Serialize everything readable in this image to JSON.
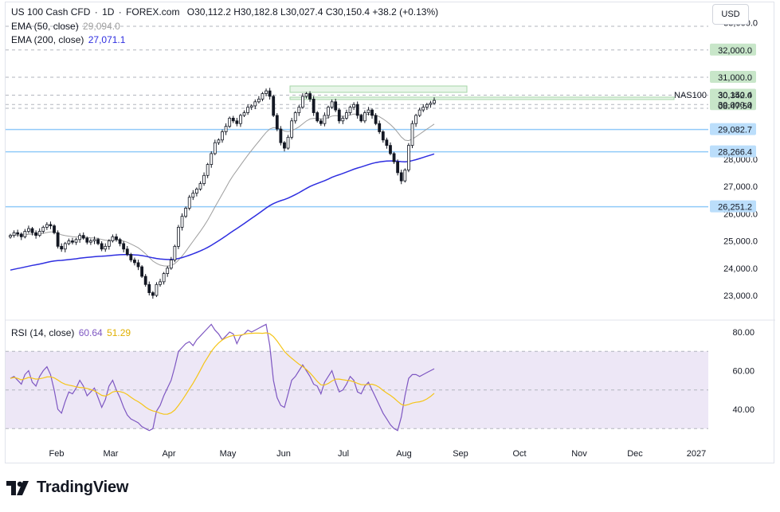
{
  "header": {
    "symbol": "US 100 Cash CFD",
    "interval": "1D",
    "source": "FOREX.com",
    "ohlc": "O30,112.2 H30,182.8 L30,027.4 C30,150.4 +38.2 (+0.13%)",
    "ema50_label": "EMA (50, close)",
    "ema50_value": "29,094.0",
    "ema200_label": "EMA (200, close)",
    "ema200_value": "27,071.1",
    "currency_button": "USD"
  },
  "rsi_legend": {
    "label": "RSI (14, close)",
    "value": "60.64",
    "ma_value": "51.29"
  },
  "symbol_tag": "NAS100",
  "price_badge": {
    "price": "30,150.4",
    "countdown": "08:47:54"
  },
  "price_axis_ticks": [
    "33,000.0",
    "27,000.0",
    "25,000.0",
    "24,000.0",
    "23,000.0"
  ],
  "price_axis_partial": [
    "28,000.0",
    "26,000.0"
  ],
  "level_badges": [
    {
      "label": "32,000.0",
      "value": 32000,
      "kind": "green"
    },
    {
      "label": "31,000.0",
      "value": 31000,
      "kind": "green"
    },
    {
      "label": "30,342.0",
      "value": 30342,
      "kind": "green"
    },
    {
      "label": "30,000.0",
      "value": 30000,
      "kind": "green"
    },
    {
      "label": "29,082.7",
      "value": 29082.7,
      "kind": "blue"
    },
    {
      "label": "28,266.4",
      "value": 28266.4,
      "kind": "blue"
    },
    {
      "label": "26,251.2",
      "value": 26251.2,
      "kind": "blue"
    }
  ],
  "rsi_axis_ticks": [
    "80.00",
    "60.00",
    "40.00"
  ],
  "time_axis": [
    "Feb",
    "Mar",
    "Apr",
    "May",
    "Jun",
    "Jul",
    "Aug",
    "Sep",
    "Oct",
    "Nov",
    "Dec",
    "2027"
  ],
  "brand": "TradingView",
  "colors": {
    "up": "#131722",
    "down": "#131722",
    "ema50": "#9e9e9e",
    "ema200": "#2e2ee0",
    "rsi": "#7e57c2",
    "rsi_ma": "#f5c518",
    "rsi_band": "#ede7f6",
    "green_badge": "#c8e6c9",
    "blue_badge": "#bbdefb",
    "green_zone": "#e8f5e9",
    "blue_line": "#90caf9"
  },
  "chart_data": [
    {
      "type": "candlestick",
      "title": "US 100 Cash CFD · 1D · FOREX.com",
      "x_unit": "trading session (approx. daily, Jan to mid-Aug)",
      "ylim": [
        22500,
        33200
      ],
      "close_series": [
        25200,
        25300,
        25250,
        25150,
        25350,
        25450,
        25300,
        25200,
        25350,
        25500,
        25600,
        25550,
        25300,
        24800,
        24700,
        24900,
        25000,
        24950,
        25050,
        25200,
        25100,
        24950,
        25000,
        25050,
        24900,
        24700,
        24800,
        25000,
        25150,
        25050,
        24900,
        24700,
        24500,
        24300,
        24200,
        24050,
        23700,
        23400,
        23100,
        23000,
        23400,
        23500,
        23800,
        24000,
        24300,
        24800,
        25500,
        25900,
        26200,
        26600,
        26750,
        26900,
        27100,
        27400,
        27800,
        28200,
        28600,
        28700,
        29000,
        29200,
        29500,
        29400,
        29300,
        29600,
        29700,
        29900,
        29950,
        30100,
        30200,
        30400,
        30500,
        30300,
        29600,
        29100,
        28600,
        28400,
        28800,
        29400,
        29700,
        29900,
        30300,
        30400,
        30200,
        29700,
        29400,
        29300,
        29600,
        29900,
        30100,
        29800,
        29400,
        29500,
        29700,
        29900,
        30000,
        29600,
        29400,
        29700,
        29800,
        29600,
        29300,
        29000,
        28700,
        28500,
        28200,
        27900,
        27500,
        27200,
        27600,
        28500,
        29300,
        29600,
        29800,
        29900,
        30000,
        30050,
        30150
      ]
    },
    {
      "type": "line",
      "name": "EMA (50, close)",
      "last_value": 29094.0
    },
    {
      "type": "line",
      "name": "EMA (200, close)",
      "last_value": 27071.1
    },
    {
      "type": "line",
      "name": "RSI (14, close)",
      "ylim": [
        25,
        85
      ],
      "bands": [
        30,
        50,
        70
      ],
      "last_value": 60.64,
      "ma_last_value": 51.29,
      "values": [
        56,
        57,
        55,
        53,
        58,
        60,
        54,
        52,
        57,
        60,
        62,
        58,
        50,
        40,
        38,
        44,
        49,
        48,
        51,
        55,
        52,
        47,
        49,
        51,
        46,
        41,
        45,
        52,
        55,
        50,
        46,
        41,
        37,
        35,
        34,
        33,
        31,
        30,
        29,
        30,
        39,
        42,
        47,
        51,
        55,
        62,
        70,
        72,
        74,
        75,
        73,
        76,
        78,
        80,
        82,
        84,
        81,
        79,
        76,
        78,
        80,
        79,
        74,
        78,
        79,
        81,
        80,
        81,
        82,
        83,
        84,
        73,
        55,
        46,
        42,
        41,
        48,
        55,
        57,
        60,
        63,
        60,
        57,
        53,
        52,
        48,
        54,
        57,
        60,
        54,
        49,
        50,
        53,
        57,
        55,
        49,
        48,
        52,
        54,
        50,
        46,
        42,
        38,
        35,
        32,
        30,
        29,
        36,
        47,
        56,
        58,
        58,
        57,
        58,
        59,
        60,
        61
      ]
    }
  ]
}
